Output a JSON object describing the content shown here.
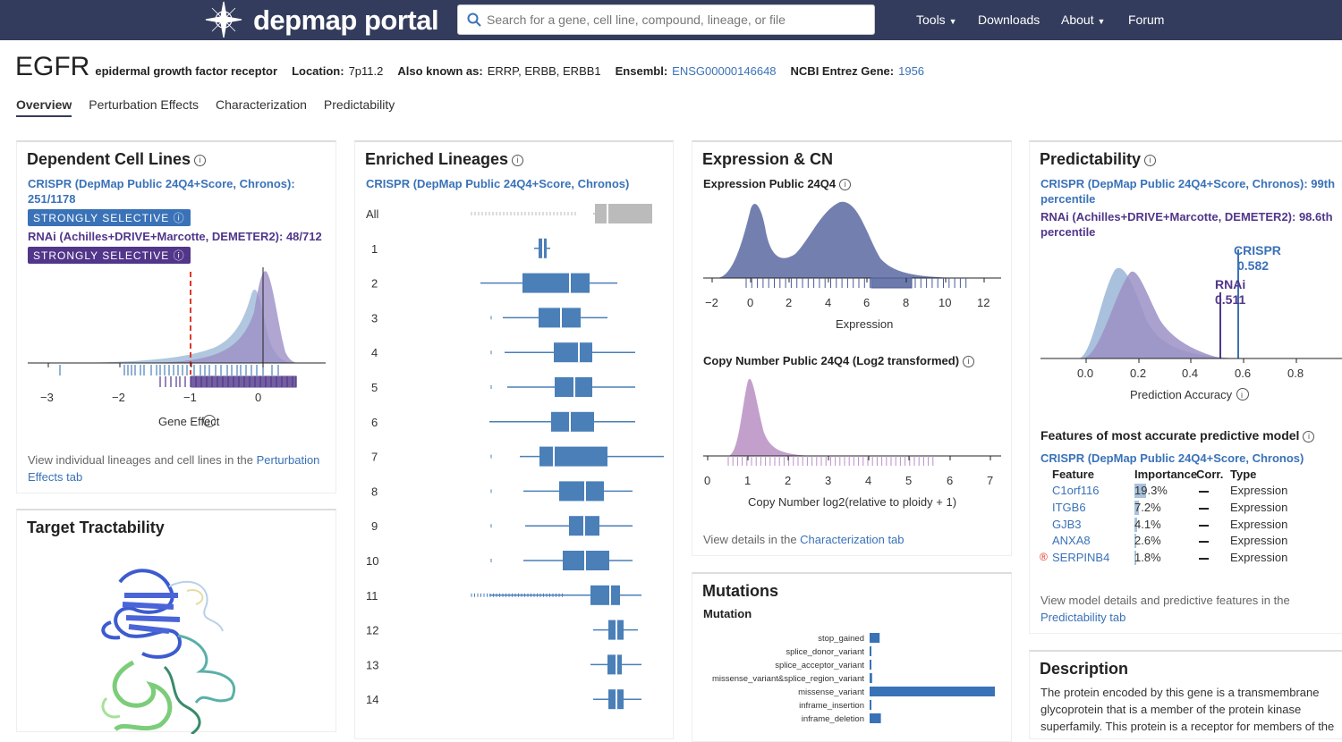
{
  "nav": {
    "logo_text": "depmap portal",
    "search_placeholder": "Search for a gene, cell line, compound, lineage, or file",
    "links": [
      "Tools",
      "Downloads",
      "About",
      "Forum"
    ]
  },
  "gene": {
    "symbol": "EGFR",
    "name": "epidermal growth factor receptor",
    "location_label": "Location:",
    "location": "7p11.2",
    "aka_label": "Also known as:",
    "aka": "ERRP, ERBB, ERBB1",
    "ensembl_label": "Ensembl:",
    "ensembl": "ENSG00000146648",
    "entrez_label": "NCBI Entrez Gene:",
    "entrez": "1956"
  },
  "tabs": [
    "Overview",
    "Perturbation Effects",
    "Characterization",
    "Predictability"
  ],
  "dependent": {
    "title": "Dependent Cell Lines",
    "crispr_line1": "CRISPR (DepMap Public 24Q4+Score, Chronos):",
    "crispr_line2": "251/1178",
    "badge": "STRONGLY SELECTIVE",
    "rnai": "RNAi (Achilles+DRIVE+Marcotte, DEMETER2): 48/712",
    "x_ticks": [
      "−3",
      "−2",
      "−1",
      "0"
    ],
    "xlabel": "Gene Effect",
    "footer_text": "View individual lineages and cell lines in the ",
    "footer_link1": "Perturbation",
    "footer_link2": "Effects tab"
  },
  "tractability": {
    "title": "Target Tractability"
  },
  "lineages": {
    "title": "Enriched Lineages",
    "subtitle": "CRISPR (DepMap Public 24Q4+Score, Chronos)",
    "rows": [
      "All",
      "1",
      "2",
      "3",
      "4",
      "5",
      "6",
      "7",
      "8",
      "9",
      "10",
      "11",
      "12",
      "13",
      "14"
    ]
  },
  "expression": {
    "title": "Expression & CN",
    "exp_subtitle": "Expression Public 24Q4",
    "exp_ticks": [
      "−2",
      "0",
      "2",
      "4",
      "6",
      "8",
      "10",
      "12"
    ],
    "exp_xlabel": "Expression",
    "cn_subtitle": "Copy Number Public 24Q4 (Log2 transformed)",
    "cn_ticks": [
      "0",
      "1",
      "2",
      "3",
      "4",
      "5",
      "6",
      "7"
    ],
    "cn_xlabel": "Copy Number log2(relative to ploidy + 1)",
    "footer_text": "View details in the ",
    "footer_link": "Characterization tab"
  },
  "mutations": {
    "title": "Mutations",
    "subtitle": "Mutation"
  },
  "predictability": {
    "title": "Predictability",
    "crispr_line1": "CRISPR (DepMap Public 24Q4+Score, Chronos): 99th",
    "crispr_line2": "percentile",
    "rnai_line1": "RNAi (Achilles+DRIVE+Marcotte, DEMETER2): 98.6th",
    "rnai_line2": "percentile",
    "crispr_label": "CRISPR",
    "crispr_value": "0.582",
    "rnai_label": "RNAi",
    "rnai_value": "0.511",
    "x_ticks": [
      "0.0",
      "0.2",
      "0.4",
      "0.6",
      "0.8"
    ],
    "xlabel": "Prediction Accuracy",
    "features_title": "Features of most accurate predictive model",
    "features_subtitle": "CRISPR (DepMap Public 24Q4+Score, Chronos)",
    "col_headers": [
      "Feature",
      "Importance",
      "Corr.",
      "Type"
    ],
    "features": [
      {
        "name": "C1orf116",
        "importance": "19.3%",
        "imp": 19.3,
        "type": "Expression"
      },
      {
        "name": "ITGB6",
        "importance": "7.2%",
        "imp": 7.2,
        "type": "Expression"
      },
      {
        "name": "GJB3",
        "importance": "4.1%",
        "imp": 4.1,
        "type": "Expression"
      },
      {
        "name": "ANXA8",
        "importance": "2.6%",
        "imp": 2.6,
        "type": "Expression"
      },
      {
        "name": "SERPINB4",
        "importance": "1.8%",
        "imp": 1.8,
        "type": "Expression"
      }
    ],
    "footer_line1": "View model details and predictive features in the",
    "footer_link": "Predictability tab"
  },
  "description": {
    "title": "Description",
    "line1": "The protein encoded by this gene is a transmembrane",
    "line2": "glycoprotein that is a member of the protein kinase",
    "line3": "superfamily. This protein is a receptor for members of the"
  },
  "chart_data": [
    {
      "type": "bar",
      "title": "Mutation",
      "orientation": "horizontal",
      "categories": [
        "stop_gained",
        "splice_donor_variant",
        "splice_acceptor_variant",
        "missense_variant&splice_region_variant",
        "missense_variant",
        "inframe_insertion",
        "inframe_deletion"
      ],
      "values": [
        8,
        1,
        1,
        2,
        100,
        1,
        9
      ]
    },
    {
      "type": "table",
      "title": "Features of most accurate predictive model",
      "columns": [
        "Feature",
        "Importance"
      ],
      "rows": [
        [
          "C1orf116",
          19.3
        ],
        [
          "ITGB6",
          7.2
        ],
        [
          "GJB3",
          4.1
        ],
        [
          "ANXA8",
          2.6
        ],
        [
          "SERPINB4",
          1.8
        ]
      ]
    }
  ],
  "colors": {
    "nav_bg": "#333c5c",
    "crispr_blue": "#3a72b8",
    "rnai_purple": "#51368a",
    "density_purple": "#9c90c5",
    "density_blue": "#a9c1dc",
    "box_blue": "#4a7fb8",
    "bar_blue": "#3a72b8"
  }
}
